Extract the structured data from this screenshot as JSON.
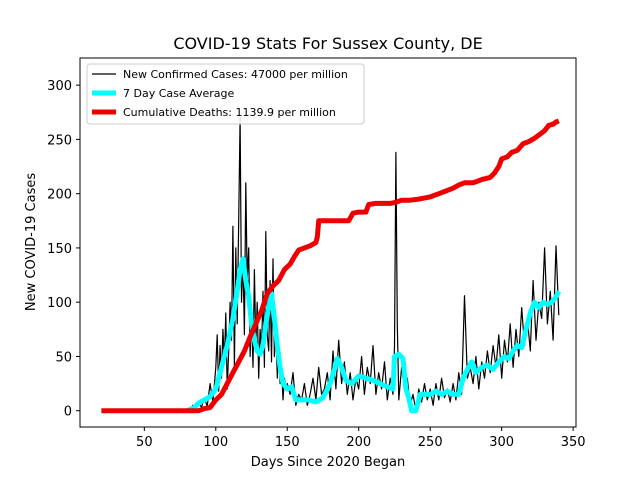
{
  "chart_data": {
    "type": "line",
    "title": "COVID-19 Stats For Sussex County, DE",
    "xlabel": "Days Since 2020 Began",
    "ylabel": "New COVID-19 Cases",
    "xlim": [
      5,
      352
    ],
    "ylim": [
      -15,
      325
    ],
    "xticks": [
      50,
      100,
      150,
      200,
      250,
      300,
      350
    ],
    "yticks": [
      0,
      50,
      100,
      150,
      200,
      250,
      300
    ],
    "grid": false,
    "legend_position": "top-left",
    "series": [
      {
        "name": "New Confirmed Cases: 47000 per million",
        "color": "#000000",
        "line_width": 1.2,
        "points": [
          [
            20,
            0
          ],
          [
            40,
            0
          ],
          [
            60,
            0
          ],
          [
            78,
            0
          ],
          [
            80,
            2
          ],
          [
            82,
            0
          ],
          [
            84,
            5
          ],
          [
            86,
            1
          ],
          [
            88,
            8
          ],
          [
            90,
            3
          ],
          [
            92,
            12
          ],
          [
            94,
            4
          ],
          [
            96,
            25
          ],
          [
            98,
            8
          ],
          [
            100,
            40
          ],
          [
            101,
            70
          ],
          [
            102,
            18
          ],
          [
            103,
            60
          ],
          [
            104,
            30
          ],
          [
            105,
            75
          ],
          [
            106,
            45
          ],
          [
            107,
            90
          ],
          [
            108,
            20
          ],
          [
            109,
            55
          ],
          [
            110,
            100
          ],
          [
            111,
            65
          ],
          [
            112,
            170
          ],
          [
            113,
            40
          ],
          [
            114,
            150
          ],
          [
            115,
            80
          ],
          [
            116,
            175
          ],
          [
            117,
            270
          ],
          [
            118,
            100
          ],
          [
            119,
            140
          ],
          [
            120,
            70
          ],
          [
            121,
            210
          ],
          [
            122,
            120
          ],
          [
            123,
            150
          ],
          [
            124,
            50
          ],
          [
            125,
            90
          ],
          [
            126,
            40
          ],
          [
            127,
            130
          ],
          [
            128,
            60
          ],
          [
            129,
            100
          ],
          [
            130,
            30
          ],
          [
            131,
            75
          ],
          [
            132,
            55
          ],
          [
            133,
            110
          ],
          [
            134,
            40
          ],
          [
            135,
            165
          ],
          [
            136,
            70
          ],
          [
            137,
            55
          ],
          [
            138,
            120
          ],
          [
            139,
            45
          ],
          [
            140,
            140
          ],
          [
            141,
            50
          ],
          [
            142,
            80
          ],
          [
            143,
            30
          ],
          [
            144,
            60
          ],
          [
            145,
            25
          ],
          [
            146,
            40
          ],
          [
            147,
            10
          ],
          [
            148,
            30
          ],
          [
            149,
            20
          ],
          [
            150,
            25
          ],
          [
            152,
            15
          ],
          [
            154,
            35
          ],
          [
            156,
            5
          ],
          [
            158,
            15
          ],
          [
            160,
            10
          ],
          [
            162,
            25
          ],
          [
            164,
            5
          ],
          [
            166,
            15
          ],
          [
            168,
            30
          ],
          [
            170,
            10
          ],
          [
            172,
            40
          ],
          [
            174,
            15
          ],
          [
            176,
            20
          ],
          [
            178,
            35
          ],
          [
            180,
            10
          ],
          [
            182,
            55
          ],
          [
            184,
            20
          ],
          [
            186,
            65
          ],
          [
            188,
            25
          ],
          [
            190,
            45
          ],
          [
            192,
            15
          ],
          [
            194,
            35
          ],
          [
            196,
            10
          ],
          [
            198,
            30
          ],
          [
            200,
            20
          ],
          [
            202,
            50
          ],
          [
            204,
            15
          ],
          [
            206,
            40
          ],
          [
            208,
            25
          ],
          [
            210,
            60
          ],
          [
            212,
            15
          ],
          [
            214,
            35
          ],
          [
            216,
            20
          ],
          [
            218,
            45
          ],
          [
            220,
            10
          ],
          [
            222,
            30
          ],
          [
            224,
            15
          ],
          [
            225,
            60
          ],
          [
            226,
            238
          ],
          [
            227,
            80
          ],
          [
            228,
            10
          ],
          [
            230,
            40
          ],
          [
            232,
            20
          ],
          [
            234,
            30
          ],
          [
            236,
            5
          ],
          [
            238,
            15
          ],
          [
            240,
            0
          ],
          [
            242,
            20
          ],
          [
            244,
            8
          ],
          [
            246,
            25
          ],
          [
            248,
            10
          ],
          [
            250,
            20
          ],
          [
            252,
            5
          ],
          [
            254,
            25
          ],
          [
            256,
            10
          ],
          [
            258,
            30
          ],
          [
            260,
            12
          ],
          [
            262,
            20
          ],
          [
            264,
            8
          ],
          [
            266,
            25
          ],
          [
            268,
            10
          ],
          [
            270,
            35
          ],
          [
            272,
            15
          ],
          [
            274,
            106
          ],
          [
            276,
            30
          ],
          [
            278,
            40
          ],
          [
            280,
            25
          ],
          [
            282,
            50
          ],
          [
            284,
            20
          ],
          [
            286,
            45
          ],
          [
            288,
            30
          ],
          [
            290,
            55
          ],
          [
            292,
            35
          ],
          [
            294,
            60
          ],
          [
            296,
            40
          ],
          [
            298,
            70
          ],
          [
            300,
            30
          ],
          [
            302,
            65
          ],
          [
            304,
            45
          ],
          [
            306,
            80
          ],
          [
            308,
            40
          ],
          [
            310,
            75
          ],
          [
            312,
            50
          ],
          [
            314,
            95
          ],
          [
            316,
            60
          ],
          [
            318,
            85
          ],
          [
            320,
            55
          ],
          [
            322,
            120
          ],
          [
            324,
            65
          ],
          [
            326,
            100
          ],
          [
            328,
            85
          ],
          [
            330,
            150
          ],
          [
            332,
            80
          ],
          [
            334,
            110
          ],
          [
            336,
            65
          ],
          [
            338,
            152
          ],
          [
            340,
            88
          ]
        ]
      },
      {
        "name": "7 Day Case Average",
        "color": "#00ffff",
        "line_width": 5,
        "points": [
          [
            80,
            0
          ],
          [
            85,
            3
          ],
          [
            88,
            7
          ],
          [
            92,
            10
          ],
          [
            96,
            13
          ],
          [
            100,
            20
          ],
          [
            104,
            40
          ],
          [
            108,
            60
          ],
          [
            112,
            85
          ],
          [
            115,
            110
          ],
          [
            117,
            130
          ],
          [
            119,
            140
          ],
          [
            121,
            120
          ],
          [
            123,
            105
          ],
          [
            125,
            80
          ],
          [
            127,
            65
          ],
          [
            129,
            55
          ],
          [
            131,
            52
          ],
          [
            133,
            60
          ],
          [
            135,
            80
          ],
          [
            137,
            95
          ],
          [
            139,
            108
          ],
          [
            141,
            85
          ],
          [
            143,
            60
          ],
          [
            145,
            40
          ],
          [
            147,
            25
          ],
          [
            150,
            20
          ],
          [
            153,
            22
          ],
          [
            156,
            10
          ],
          [
            160,
            10
          ],
          [
            165,
            10
          ],
          [
            170,
            8
          ],
          [
            175,
            12
          ],
          [
            180,
            25
          ],
          [
            183,
            38
          ],
          [
            185,
            48
          ],
          [
            188,
            40
          ],
          [
            191,
            28
          ],
          [
            195,
            25
          ],
          [
            200,
            32
          ],
          [
            205,
            30
          ],
          [
            210,
            28
          ],
          [
            215,
            25
          ],
          [
            220,
            22
          ],
          [
            224,
            20
          ],
          [
            225,
            50
          ],
          [
            228,
            52
          ],
          [
            231,
            48
          ],
          [
            233,
            20
          ],
          [
            235,
            12
          ],
          [
            237,
            0
          ],
          [
            240,
            0
          ],
          [
            243,
            15
          ],
          [
            246,
            15
          ],
          [
            250,
            15
          ],
          [
            254,
            18
          ],
          [
            258,
            15
          ],
          [
            262,
            18
          ],
          [
            266,
            15
          ],
          [
            270,
            15
          ],
          [
            273,
            30
          ],
          [
            276,
            38
          ],
          [
            279,
            45
          ],
          [
            282,
            35
          ],
          [
            286,
            40
          ],
          [
            290,
            42
          ],
          [
            294,
            38
          ],
          [
            298,
            45
          ],
          [
            302,
            50
          ],
          [
            305,
            48
          ],
          [
            308,
            55
          ],
          [
            311,
            60
          ],
          [
            314,
            58
          ],
          [
            317,
            75
          ],
          [
            320,
            90
          ],
          [
            323,
            100
          ],
          [
            326,
            95
          ],
          [
            329,
            100
          ],
          [
            332,
            98
          ],
          [
            335,
            100
          ],
          [
            338,
            105
          ],
          [
            340,
            110
          ]
        ]
      },
      {
        "name": "Cumulative Deaths: 1139.9 per million",
        "color": "#ee0000",
        "line_width": 5,
        "points": [
          [
            20,
            0
          ],
          [
            60,
            0
          ],
          [
            80,
            0
          ],
          [
            88,
            0
          ],
          [
            92,
            2
          ],
          [
            96,
            3
          ],
          [
            100,
            10
          ],
          [
            104,
            15
          ],
          [
            108,
            25
          ],
          [
            112,
            35
          ],
          [
            116,
            45
          ],
          [
            120,
            55
          ],
          [
            124,
            68
          ],
          [
            128,
            80
          ],
          [
            132,
            92
          ],
          [
            136,
            108
          ],
          [
            140,
            115
          ],
          [
            144,
            120
          ],
          [
            148,
            130
          ],
          [
            152,
            135
          ],
          [
            155,
            142
          ],
          [
            158,
            148
          ],
          [
            162,
            150
          ],
          [
            166,
            152
          ],
          [
            170,
            155
          ],
          [
            171,
            160
          ],
          [
            172,
            175
          ],
          [
            178,
            175
          ],
          [
            185,
            175
          ],
          [
            193,
            175
          ],
          [
            196,
            182
          ],
          [
            200,
            183
          ],
          [
            205,
            183
          ],
          [
            207,
            190
          ],
          [
            212,
            191
          ],
          [
            218,
            191
          ],
          [
            222,
            191
          ],
          [
            226,
            192
          ],
          [
            230,
            194
          ],
          [
            236,
            194
          ],
          [
            242,
            195
          ],
          [
            250,
            197
          ],
          [
            256,
            200
          ],
          [
            262,
            203
          ],
          [
            266,
            205
          ],
          [
            270,
            208
          ],
          [
            274,
            210
          ],
          [
            280,
            210
          ],
          [
            286,
            213
          ],
          [
            292,
            215
          ],
          [
            295,
            219
          ],
          [
            298,
            225
          ],
          [
            300,
            232
          ],
          [
            304,
            234
          ],
          [
            307,
            238
          ],
          [
            311,
            240
          ],
          [
            315,
            246
          ],
          [
            319,
            248
          ],
          [
            323,
            251
          ],
          [
            327,
            255
          ],
          [
            330,
            258
          ],
          [
            333,
            263
          ],
          [
            336,
            264
          ],
          [
            338,
            266
          ],
          [
            340,
            267
          ]
        ]
      }
    ]
  }
}
